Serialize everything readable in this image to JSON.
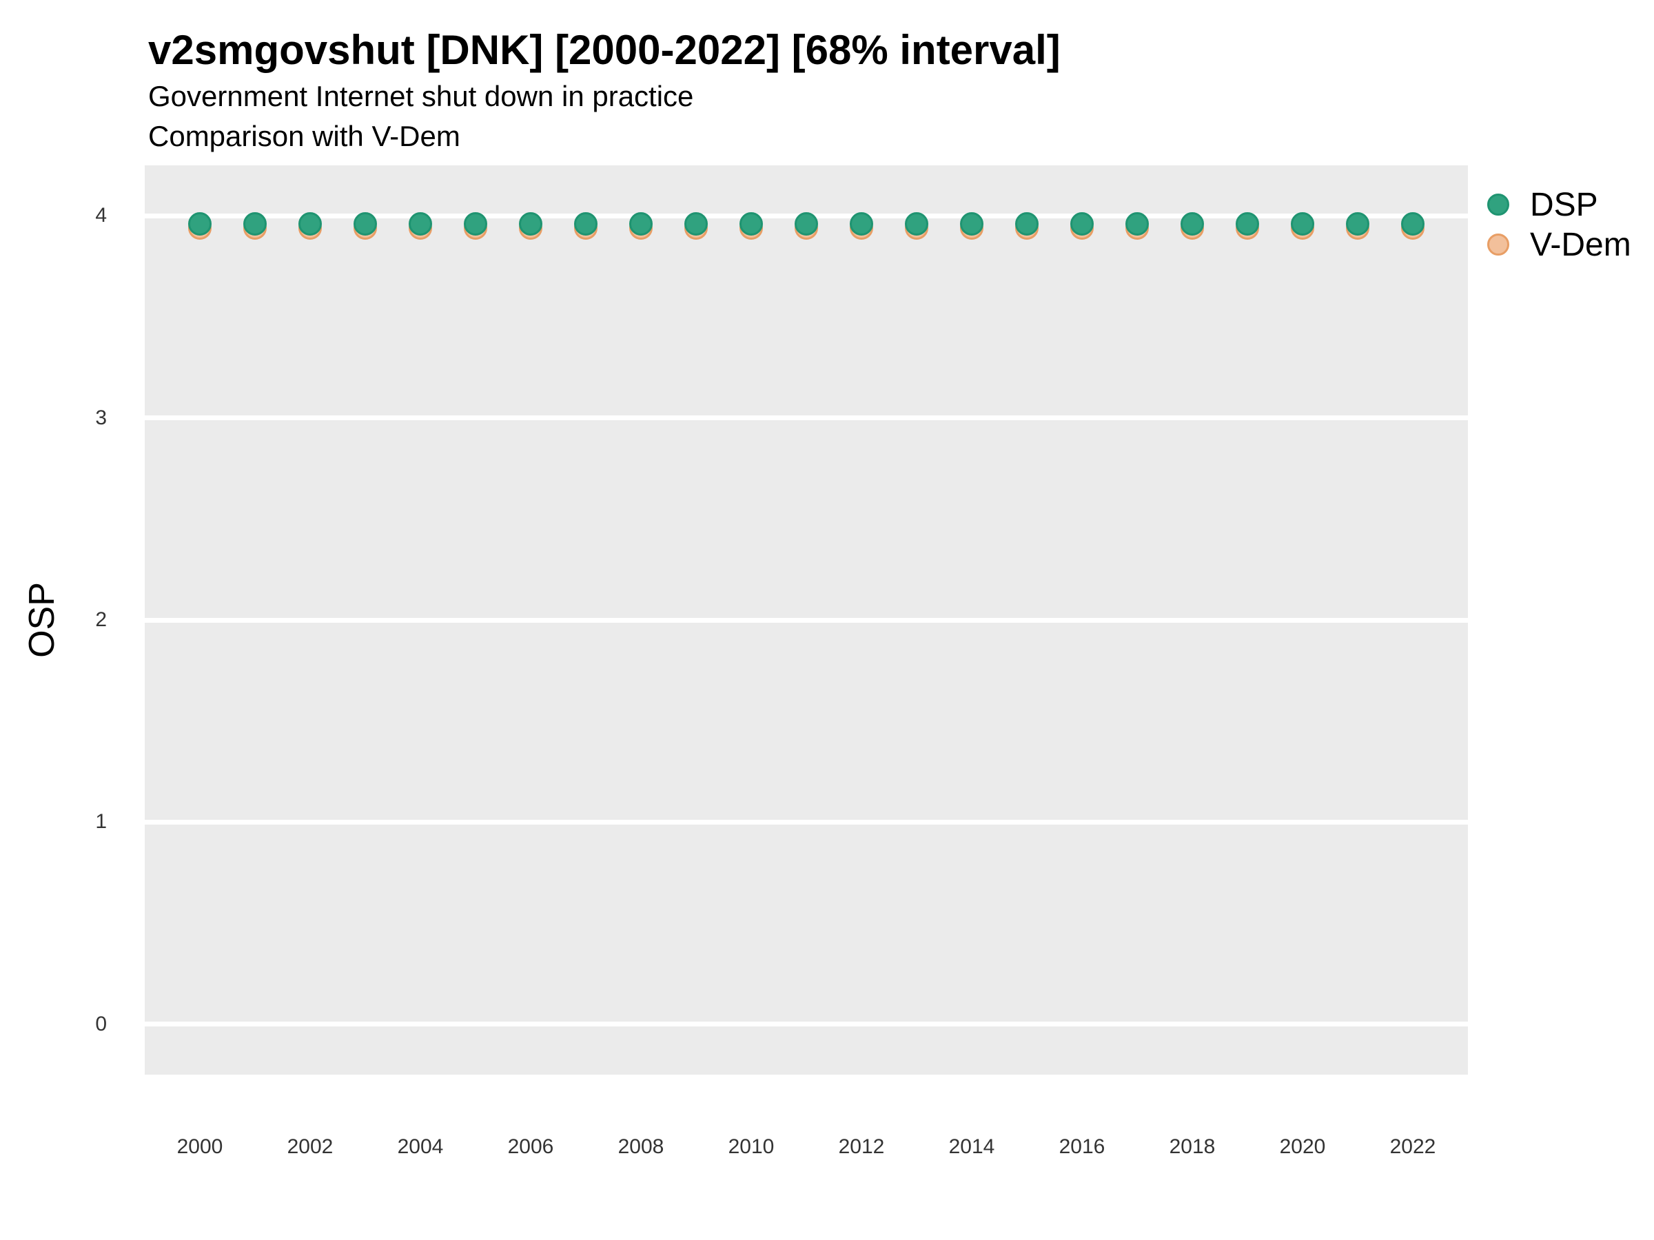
{
  "header": {
    "title": "v2smgovshut [DNK] [2000-2022] [68% interval]",
    "subtitle_line1": "Government Internet shut down in practice",
    "subtitle_line2": "Comparison with V-Dem"
  },
  "y_axis": {
    "label": "OSP"
  },
  "legend": {
    "items": [
      {
        "label": "DSP",
        "fill": "#30A27F",
        "stroke": "#1F9471"
      },
      {
        "label": "V-Dem",
        "fill": "#F2C09B",
        "stroke": "#E89E65"
      }
    ]
  },
  "colors": {
    "panel_background": "#EBEBEB",
    "gridline": "#FFFFFF",
    "tick_text": "#333333",
    "dsp_green": "#30A27F",
    "vdem_orange": "#F2C09B"
  },
  "chart_data": {
    "type": "scatter",
    "title": "v2smgovshut [DNK] [2000-2022] [68% interval]",
    "subtitle": "Government Internet shut down in practice — Comparison with V-Dem",
    "xlabel": "",
    "ylabel": "OSP",
    "x": [
      2000,
      2001,
      2002,
      2003,
      2004,
      2005,
      2006,
      2007,
      2008,
      2009,
      2010,
      2011,
      2012,
      2013,
      2014,
      2015,
      2016,
      2017,
      2018,
      2019,
      2020,
      2021,
      2022
    ],
    "series": [
      {
        "name": "DSP",
        "fill": "#30A27F",
        "stroke": "#1F9471",
        "values": [
          3.96,
          3.96,
          3.96,
          3.96,
          3.96,
          3.96,
          3.96,
          3.96,
          3.96,
          3.96,
          3.96,
          3.96,
          3.96,
          3.96,
          3.96,
          3.96,
          3.96,
          3.96,
          3.96,
          3.96,
          3.96,
          3.96,
          3.96
        ]
      },
      {
        "name": "V-Dem",
        "fill": "#F2C09B",
        "stroke": "#E89E65",
        "values": [
          3.94,
          3.94,
          3.94,
          3.94,
          3.94,
          3.94,
          3.94,
          3.94,
          3.94,
          3.94,
          3.94,
          3.94,
          3.94,
          3.94,
          3.94,
          3.94,
          3.94,
          3.94,
          3.94,
          3.94,
          3.94,
          3.94,
          3.94
        ]
      }
    ],
    "xticks": [
      2000,
      2002,
      2004,
      2006,
      2008,
      2010,
      2012,
      2014,
      2016,
      2018,
      2020,
      2022
    ],
    "yticks": [
      0,
      1,
      2,
      3,
      4
    ],
    "xlim": [
      1999,
      2023
    ],
    "ylim": [
      -0.25,
      4.25
    ],
    "grid": "major-horizontal-only",
    "legend_position": "right"
  }
}
